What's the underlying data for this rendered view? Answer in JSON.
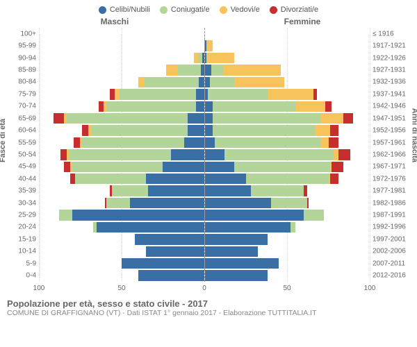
{
  "type": "population-pyramid",
  "legend": [
    {
      "label": "Celibi/Nubili",
      "color": "#3a6fa6"
    },
    {
      "label": "Coniugati/e",
      "color": "#b4d59a"
    },
    {
      "label": "Vedovi/e",
      "color": "#f6c35c"
    },
    {
      "label": "Divorziati/e",
      "color": "#c72f2f"
    }
  ],
  "header_left": "Maschi",
  "header_right": "Femmine",
  "y_title_left": "Fasce di età",
  "y_title_right": "Anni di nascita",
  "x_max": 100,
  "x_ticks": [
    100,
    50,
    0,
    50,
    100
  ],
  "grid_strong_color": "#bcbcbc",
  "grid_dotted_color": "#d8d8d8",
  "background_color": "#ffffff",
  "title": "Popolazione per età, sesso e stato civile - 2017",
  "subtitle": "COMUNE DI GRAFFIGNANO (VT) - Dati ISTAT 1° gennaio 2017 - Elaborazione TUTTITALIA.IT",
  "rows": [
    {
      "age": "100+",
      "birth": "≤ 1916",
      "m": [
        0,
        0,
        0,
        0
      ],
      "f": [
        0,
        0,
        0,
        0
      ]
    },
    {
      "age": "95-99",
      "birth": "1917-1921",
      "m": [
        0,
        0,
        0,
        0
      ],
      "f": [
        1,
        0,
        4,
        0
      ]
    },
    {
      "age": "90-94",
      "birth": "1922-1926",
      "m": [
        1,
        2,
        3,
        0
      ],
      "f": [
        1,
        0,
        17,
        0
      ]
    },
    {
      "age": "85-89",
      "birth": "1927-1931",
      "m": [
        2,
        14,
        7,
        0
      ],
      "f": [
        4,
        7,
        35,
        0
      ]
    },
    {
      "age": "80-84",
      "birth": "1932-1936",
      "m": [
        3,
        33,
        4,
        0
      ],
      "f": [
        3,
        15,
        30,
        0
      ]
    },
    {
      "age": "75-79",
      "birth": "1937-1941",
      "m": [
        5,
        46,
        3,
        3
      ],
      "f": [
        2,
        36,
        28,
        2
      ]
    },
    {
      "age": "70-74",
      "birth": "1942-1946",
      "m": [
        5,
        54,
        2,
        3
      ],
      "f": [
        5,
        50,
        18,
        4
      ]
    },
    {
      "age": "65-69",
      "birth": "1947-1951",
      "m": [
        10,
        73,
        2,
        6
      ],
      "f": [
        5,
        65,
        14,
        6
      ]
    },
    {
      "age": "60-64",
      "birth": "1952-1956",
      "m": [
        10,
        58,
        2,
        4
      ],
      "f": [
        5,
        62,
        9,
        5
      ]
    },
    {
      "age": "55-59",
      "birth": "1957-1961",
      "m": [
        12,
        62,
        1,
        4
      ],
      "f": [
        6,
        64,
        5,
        6
      ]
    },
    {
      "age": "50-54",
      "birth": "1962-1966",
      "m": [
        20,
        62,
        1,
        4
      ],
      "f": [
        12,
        66,
        3,
        7
      ]
    },
    {
      "age": "45-49",
      "birth": "1967-1971",
      "m": [
        25,
        55,
        1,
        4
      ],
      "f": [
        18,
        58,
        1,
        7
      ]
    },
    {
      "age": "40-44",
      "birth": "1972-1976",
      "m": [
        35,
        43,
        0,
        3
      ],
      "f": [
        25,
        50,
        1,
        5
      ]
    },
    {
      "age": "35-39",
      "birth": "1977-1981",
      "m": [
        34,
        22,
        0,
        1
      ],
      "f": [
        28,
        32,
        0,
        2
      ]
    },
    {
      "age": "30-34",
      "birth": "1982-1986",
      "m": [
        45,
        14,
        0,
        1
      ],
      "f": [
        40,
        22,
        0,
        1
      ]
    },
    {
      "age": "25-29",
      "birth": "1987-1991",
      "m": [
        80,
        8,
        0,
        0
      ],
      "f": [
        60,
        12,
        0,
        0
      ]
    },
    {
      "age": "20-24",
      "birth": "1992-1996",
      "m": [
        65,
        2,
        0,
        0
      ],
      "f": [
        52,
        3,
        0,
        0
      ]
    },
    {
      "age": "15-19",
      "birth": "1997-2001",
      "m": [
        42,
        0,
        0,
        0
      ],
      "f": [
        38,
        0,
        0,
        0
      ]
    },
    {
      "age": "10-14",
      "birth": "2002-2006",
      "m": [
        35,
        0,
        0,
        0
      ],
      "f": [
        32,
        0,
        0,
        0
      ]
    },
    {
      "age": "5-9",
      "birth": "2007-2011",
      "m": [
        50,
        0,
        0,
        0
      ],
      "f": [
        45,
        0,
        0,
        0
      ]
    },
    {
      "age": "0-4",
      "birth": "2012-2016",
      "m": [
        40,
        0,
        0,
        0
      ],
      "f": [
        38,
        0,
        0,
        0
      ]
    }
  ]
}
